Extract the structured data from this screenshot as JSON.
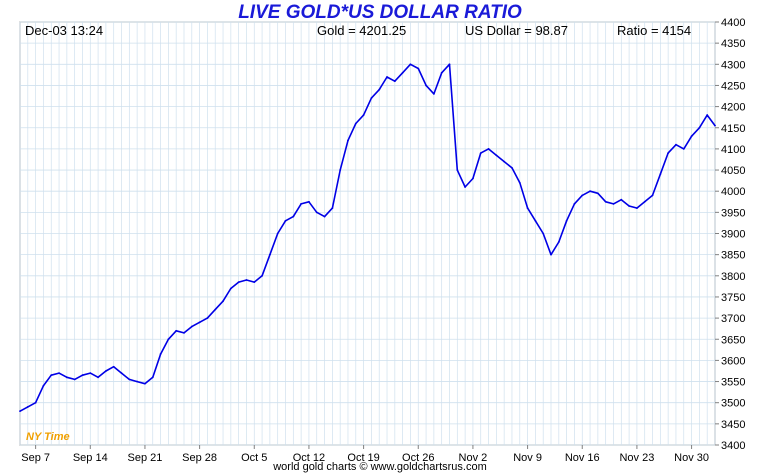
{
  "header": {
    "timestamp": "Dec-03  13:24",
    "gold_text": "Gold = 4201.25",
    "usd_text": "US Dollar = 98.87",
    "ratio_text": "Ratio = 4154"
  },
  "footer_text": "world gold charts © www.goldchartsrus.com",
  "timezone_label": "NY Time",
  "colors": {
    "title": "#1a1ad8",
    "line": "#0000e6",
    "grid": "#cfe0ee",
    "timezone": "#f0a000"
  },
  "chart_data": {
    "type": "line",
    "title": "LIVE GOLD*US DOLLAR RATIO",
    "xlabel": "",
    "ylabel": "",
    "ylim": [
      3400,
      4400
    ],
    "y_ticks": [
      3400,
      3450,
      3500,
      3550,
      3600,
      3650,
      3700,
      3750,
      3800,
      3850,
      3900,
      3950,
      4000,
      4050,
      4100,
      4150,
      4200,
      4250,
      4300,
      4350,
      4400
    ],
    "x_tick_labels": [
      "Sep 7",
      "Sep 14",
      "Sep 21",
      "Sep 28",
      "Oct 5",
      "Oct 12",
      "Oct 19",
      "Oct 26",
      "Nov 2",
      "Nov 9",
      "Nov 16",
      "Nov 23",
      "Nov 30"
    ],
    "x_start": "Sep 5",
    "x_end": "Dec 3",
    "grid": true,
    "legend": "none",
    "series": [
      {
        "x": [
          "Sep 5",
          "Sep 6",
          "Sep 7",
          "Sep 8",
          "Sep 9",
          "Sep 10",
          "Sep 11",
          "Sep 12",
          "Sep 13",
          "Sep 14",
          "Sep 15",
          "Sep 16",
          "Sep 17",
          "Sep 18",
          "Sep 19",
          "Sep 20",
          "Sep 21",
          "Sep 22",
          "Sep 23",
          "Sep 24",
          "Sep 25",
          "Sep 26",
          "Sep 27",
          "Sep 28",
          "Sep 29",
          "Sep 30",
          "Oct 1",
          "Oct 2",
          "Oct 3",
          "Oct 4",
          "Oct 5",
          "Oct 6",
          "Oct 7",
          "Oct 8",
          "Oct 9",
          "Oct 10",
          "Oct 11",
          "Oct 12",
          "Oct 13",
          "Oct 14",
          "Oct 15",
          "Oct 16",
          "Oct 17",
          "Oct 18",
          "Oct 19",
          "Oct 20",
          "Oct 21",
          "Oct 22",
          "Oct 23",
          "Oct 24",
          "Oct 25",
          "Oct 26",
          "Oct 27",
          "Oct 28",
          "Oct 29",
          "Oct 30",
          "Oct 31",
          "Nov 1",
          "Nov 2",
          "Nov 3",
          "Nov 4",
          "Nov 5",
          "Nov 6",
          "Nov 7",
          "Nov 8",
          "Nov 9",
          "Nov 10",
          "Nov 11",
          "Nov 12",
          "Nov 13",
          "Nov 14",
          "Nov 15",
          "Nov 16",
          "Nov 17",
          "Nov 18",
          "Nov 19",
          "Nov 20",
          "Nov 21",
          "Nov 22",
          "Nov 23",
          "Nov 24",
          "Nov 25",
          "Nov 26",
          "Nov 27",
          "Nov 28",
          "Nov 29",
          "Nov 30",
          "Dec 1",
          "Dec 2",
          "Dec 3"
        ],
        "y": [
          3480,
          3490,
          3500,
          3540,
          3565,
          3570,
          3560,
          3555,
          3565,
          3570,
          3560,
          3575,
          3585,
          3570,
          3555,
          3550,
          3545,
          3560,
          3615,
          3650,
          3670,
          3665,
          3680,
          3690,
          3700,
          3720,
          3740,
          3770,
          3785,
          3790,
          3785,
          3800,
          3850,
          3900,
          3930,
          3940,
          3970,
          3975,
          3950,
          3940,
          3960,
          4050,
          4120,
          4160,
          4180,
          4220,
          4240,
          4270,
          4260,
          4280,
          4300,
          4290,
          4250,
          4230,
          4280,
          4300,
          4050,
          4010,
          4030,
          4090,
          4100,
          4085,
          4070,
          4055,
          4020,
          3960,
          3930,
          3900,
          3850,
          3880,
          3930,
          3970,
          3990,
          4000,
          3995,
          3975,
          3970,
          3980,
          3965,
          3960,
          3975,
          3990,
          4040,
          4090,
          4110,
          4100,
          4130,
          4150,
          4180,
          4155
        ],
        "sample_note": ""
      }
    ]
  }
}
